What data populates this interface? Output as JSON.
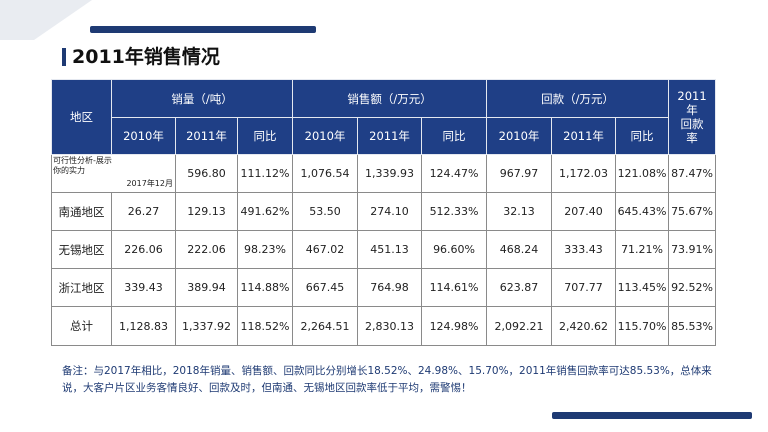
{
  "page": {
    "title": "2011年销售情况",
    "footnote": "备注：与2017年相比，2018年销量、销售额、回款同比分别增长18.52%、24.98%、15.70%，2011年销售回款率可达85.53%，总体来说，大客户片区业务客情良好、回款及时，但南通、无锡地区回款率低于平均，需警惕！"
  },
  "colors": {
    "header_bg": "#1f3f86",
    "accent": "#1e3a73",
    "deco": "#e9ecf1"
  },
  "table": {
    "region_header": "地区",
    "groups": [
      "销量（/吨）",
      "销售额（/万元）",
      "回款（/万元）"
    ],
    "rate_header": [
      "2011",
      "年",
      "回款",
      "率"
    ],
    "subheaders": [
      "2010年",
      "2011年",
      "同比",
      "2010年",
      "2011年",
      "同比",
      "2010年",
      "2011年",
      "同比"
    ],
    "feasibility_row": {
      "label": "可行性分析-展示你的实力",
      "note": "2017年12月",
      "values": [
        "596.80",
        "111.12%",
        "1,076.54",
        "1,339.93",
        "124.47%",
        "967.97",
        "1,172.03",
        "121.08%",
        "87.47%"
      ]
    },
    "rows": [
      {
        "region": "南通地区",
        "values": [
          "26.27",
          "129.13",
          "491.62%",
          "53.50",
          "274.10",
          "512.33%",
          "32.13",
          "207.40",
          "645.43%",
          "75.67%"
        ]
      },
      {
        "region": "无锡地区",
        "values": [
          "226.06",
          "222.06",
          "98.23%",
          "467.02",
          "451.13",
          "96.60%",
          "468.24",
          "333.43",
          "71.21%",
          "73.91%"
        ]
      },
      {
        "region": "浙江地区",
        "values": [
          "339.43",
          "389.94",
          "114.88%",
          "667.45",
          "764.98",
          "114.61%",
          "623.87",
          "707.77",
          "113.45%",
          "92.52%"
        ]
      },
      {
        "region": "总计",
        "values": [
          "1,128.83",
          "1,337.92",
          "118.52%",
          "2,264.51",
          "2,830.13",
          "124.98%",
          "2,092.21",
          "2,420.62",
          "115.70%",
          "85.53%"
        ]
      }
    ]
  }
}
